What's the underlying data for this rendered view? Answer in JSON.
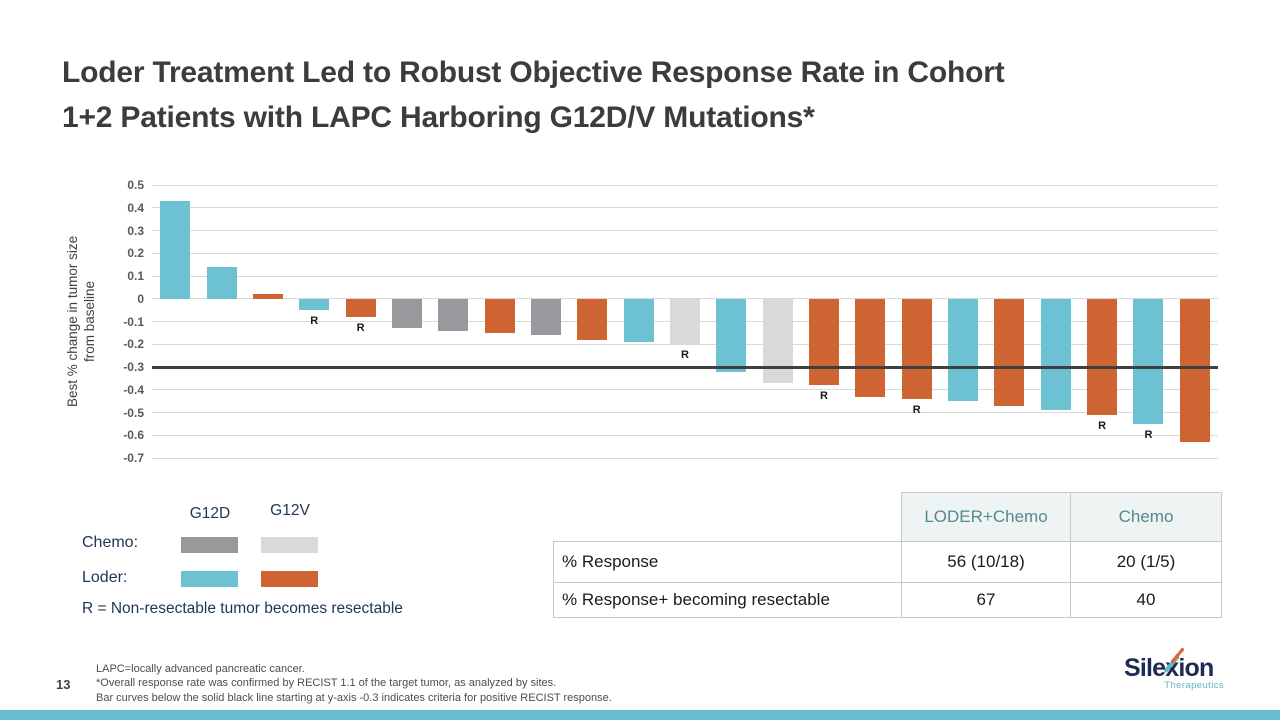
{
  "title": {
    "line1": "Loder Treatment Led to Robust Objective Response Rate in Cohort",
    "line2": "1+2 Patients with LAPC Harboring G12D/V Mutations*"
  },
  "chart_data": {
    "type": "bar",
    "title": "",
    "ylabel": "Best % change in tumor size\nfrom baseline",
    "xlabel": "",
    "ylim": [
      -0.7,
      0.5
    ],
    "grid": true,
    "yticks": [
      "0.5",
      "0.4",
      "0.3",
      "0.2",
      "0.1",
      "0",
      "-0.1",
      "-0.2",
      "-0.3",
      "-0.4",
      "-0.5",
      "-0.6",
      "-0.7"
    ],
    "threshold_line": -0.3,
    "groups": {
      "chemo_g12d": {
        "color": "#97999c"
      },
      "chemo_g12v": {
        "color": "#d9d9d9"
      },
      "loder_g12d": {
        "color": "#6cc1d3"
      },
      "loder_g12v": {
        "color": "#cd6431"
      }
    },
    "bars": [
      {
        "value": 0.43,
        "group": "loder_g12d",
        "r": false
      },
      {
        "value": 0.14,
        "group": "loder_g12d",
        "r": false
      },
      {
        "value": 0.02,
        "group": "loder_g12v",
        "r": false
      },
      {
        "value": -0.05,
        "group": "loder_g12d",
        "r": true
      },
      {
        "value": -0.08,
        "group": "loder_g12v",
        "r": true
      },
      {
        "value": -0.13,
        "group": "chemo_g12d",
        "r": false
      },
      {
        "value": -0.14,
        "group": "chemo_g12d",
        "r": false
      },
      {
        "value": -0.15,
        "group": "loder_g12v",
        "r": false
      },
      {
        "value": -0.16,
        "group": "chemo_g12d",
        "r": false
      },
      {
        "value": -0.18,
        "group": "loder_g12v",
        "r": false
      },
      {
        "value": -0.19,
        "group": "loder_g12d",
        "r": false
      },
      {
        "value": -0.2,
        "group": "chemo_g12v",
        "r": true
      },
      {
        "value": -0.32,
        "group": "loder_g12d",
        "r": false
      },
      {
        "value": -0.37,
        "group": "chemo_g12v",
        "r": false
      },
      {
        "value": -0.38,
        "group": "loder_g12v",
        "r": true
      },
      {
        "value": -0.43,
        "group": "loder_g12v",
        "r": false
      },
      {
        "value": -0.44,
        "group": "loder_g12v",
        "r": true
      },
      {
        "value": -0.45,
        "group": "loder_g12d",
        "r": false
      },
      {
        "value": -0.47,
        "group": "loder_g12v",
        "r": false
      },
      {
        "value": -0.49,
        "group": "loder_g12d",
        "r": false
      },
      {
        "value": -0.51,
        "group": "loder_g12v",
        "r": true
      },
      {
        "value": -0.55,
        "group": "loder_g12d",
        "r": true
      },
      {
        "value": -0.63,
        "group": "loder_g12v",
        "r": false
      }
    ],
    "r_marker": "R"
  },
  "legend": {
    "col_headers": [
      "G12D",
      "G12V"
    ],
    "rows": [
      {
        "label": "Chemo:",
        "swatches": [
          "chemo_g12d",
          "chemo_g12v"
        ]
      },
      {
        "label": "Loder:",
        "swatches": [
          "loder_g12d",
          "loder_g12v"
        ]
      }
    ],
    "note": "R = Non-resectable tumor becomes resectable"
  },
  "table": {
    "col_headers": [
      "LODER+Chemo",
      "Chemo"
    ],
    "rows": [
      {
        "label": "% Response",
        "values": [
          "56 (10/18)",
          "20 (1/5)"
        ]
      },
      {
        "label": "% Response+ becoming resectable",
        "values": [
          "67",
          "40"
        ]
      }
    ]
  },
  "footer": {
    "page_number": "13",
    "notes": [
      "LAPC=locally advanced pancreatic cancer.",
      "*Overall response rate was confirmed by RECIST 1.1 of the target tumor, as analyzed by sites.",
      "Bar curves below the solid black line starting at  y-axis -0.3 indicates criteria for positive RECIST response."
    ]
  },
  "logo": {
    "name_parts": [
      "Sile",
      "x",
      "ion"
    ],
    "subtitle": "Therapeutics"
  },
  "colors": {
    "title_text": "#3c3c3c",
    "navy_text": "#21365b",
    "threshold_line": "#3f3f3f",
    "gridline": "#d9d9d9",
    "table_header_bg": "#edf4f3",
    "table_header_text": "#54898f",
    "bottom_bar": "#69bccb",
    "logo_navy": "#1e2b52",
    "logo_teal": "#5fb4c9",
    "logo_accent_orange": "#e2672f"
  }
}
